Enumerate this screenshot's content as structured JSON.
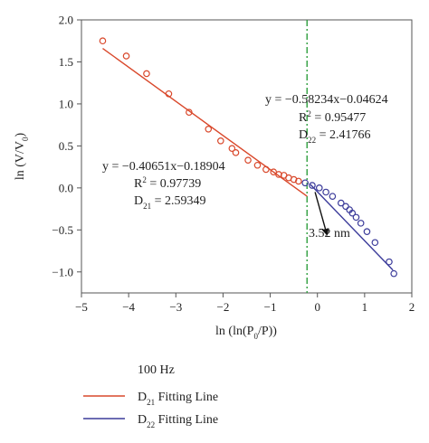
{
  "chart_data": {
    "type": "scatter",
    "xlim": [
      -5,
      2
    ],
    "ylim": [
      -1.25,
      2.0
    ],
    "xticks": [
      -5,
      -4,
      -3,
      -2,
      -1,
      0,
      1,
      2
    ],
    "yticks": [
      -1.0,
      -0.5,
      0.0,
      0.5,
      1.0,
      1.5,
      2.0
    ],
    "ytick_labels": [
      "-1.0",
      "-0.5",
      "0.0",
      "0.5",
      "1.0",
      "1.5",
      "2.0"
    ],
    "xtick_labels": [
      "-5",
      "-4",
      "-3",
      "-2",
      "-1",
      "0",
      "1",
      "2"
    ],
    "xlabel": {
      "prefix": "ln (ln(P",
      "sub": "0",
      "suffix": "/P))"
    },
    "ylabel": {
      "prefix": "ln (V/V",
      "sub": "0",
      "suffix": ")"
    },
    "grid": false,
    "series": [
      {
        "key": "s1",
        "color": "#d9482b",
        "marker": "circle-open",
        "x": [
          -4.55,
          -4.05,
          -3.62,
          -3.15,
          -2.72,
          -2.31,
          -2.05,
          -1.81,
          -1.73,
          -1.47,
          -1.27,
          -1.09,
          -0.93,
          -0.82,
          -0.71,
          -0.61,
          -0.5,
          -0.4
        ],
        "y": [
          1.75,
          1.57,
          1.36,
          1.12,
          0.9,
          0.7,
          0.56,
          0.47,
          0.42,
          0.33,
          0.27,
          0.22,
          0.19,
          0.16,
          0.15,
          0.12,
          0.1,
          0.08
        ]
      },
      {
        "key": "s2",
        "color": "#3b3b9a",
        "marker": "circle-open",
        "x": [
          -0.26,
          -0.11,
          0.04,
          0.18,
          0.32,
          0.5,
          0.6,
          0.68,
          0.74,
          0.82,
          0.92,
          1.05,
          1.22,
          1.52,
          1.62
        ],
        "y": [
          0.06,
          0.03,
          0.0,
          -0.05,
          -0.1,
          -0.18,
          -0.22,
          -0.26,
          -0.3,
          -0.35,
          -0.42,
          -0.52,
          -0.65,
          -0.88,
          -1.02
        ]
      }
    ],
    "fit_lines": [
      {
        "key": "fit1",
        "slope": -0.40651,
        "intercept": -0.18904,
        "x_range": [
          -4.55,
          -0.22
        ],
        "color": "#d9482b"
      },
      {
        "key": "fit2",
        "slope": -0.58234,
        "intercept": -0.04624,
        "x_range": [
          -0.15,
          1.6
        ],
        "color": "#3b3b9a"
      }
    ],
    "vline": {
      "x": -0.22,
      "color": "#2e9e3e",
      "style": "dash-dot"
    },
    "annotations": {
      "fit1": {
        "eq": "y = −0.40651x−0.18904",
        "r2_prefix": "R",
        "r2_sup": "2",
        "r2_value": " = 0.97739",
        "d_prefix": "D",
        "d_sub": "21",
        "d_value": " = 2.59349"
      },
      "fit2": {
        "eq": "y = −0.58234x−0.04624",
        "r2_prefix": "R",
        "r2_sup": "2",
        "r2_value": " = 0.95477",
        "d_prefix": "D",
        "d_sub": "22",
        "d_value": " = 2.41766"
      },
      "arrow_label": "3.52 nm",
      "arrow_from": [
        -0.05,
        -0.05
      ],
      "arrow_to": [
        0.2,
        -0.55
      ]
    },
    "legend": {
      "title": "100 Hz",
      "items": [
        {
          "prefix": "D",
          "sub": "21",
          "suffix": " Fitting Line",
          "color": "#d9482b"
        },
        {
          "prefix": "D",
          "sub": "22",
          "suffix": " Fitting Line",
          "color": "#3b3b9a"
        }
      ]
    }
  }
}
